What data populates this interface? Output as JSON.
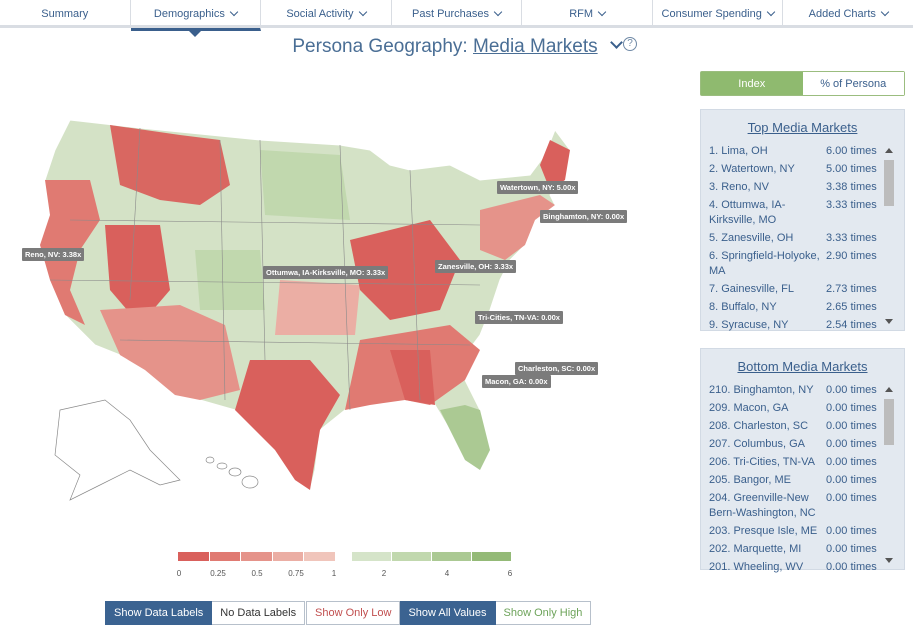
{
  "nav": {
    "tabs": [
      {
        "label": "Summary",
        "dropdown": false,
        "active": false
      },
      {
        "label": "Demographics",
        "dropdown": true,
        "active": true
      },
      {
        "label": "Social Activity",
        "dropdown": true,
        "active": false
      },
      {
        "label": "Past Purchases",
        "dropdown": true,
        "active": false
      },
      {
        "label": "RFM",
        "dropdown": true,
        "active": false
      },
      {
        "label": "Consumer Spending",
        "dropdown": true,
        "active": false
      },
      {
        "label": "Added Charts",
        "dropdown": true,
        "active": false
      }
    ]
  },
  "header": {
    "title_prefix": "Persona Geography: ",
    "title_link": "Media Markets",
    "help": "?"
  },
  "map": {
    "labels": [
      {
        "text": "Watertown, NY: 5.00x"
      },
      {
        "text": "Binghamton, NY: 0.00x"
      },
      {
        "text": "Reno, NV: 3.38x"
      },
      {
        "text": "Ottumwa, IA-Kirksville, MO: 3.33x"
      },
      {
        "text": "Zanesville, OH: 3.33x"
      },
      {
        "text": "Tri-Cities, TN-VA: 0.00x"
      },
      {
        "text": "Charleston, SC: 0.00x"
      },
      {
        "text": "Macon, GA: 0.00x"
      }
    ]
  },
  "legend": {
    "ticks": [
      "0",
      "0.25",
      "0.5",
      "0.75",
      "1",
      "2",
      "4",
      "6"
    ],
    "low_colors": [
      "#d9605c",
      "#e07a72",
      "#e5938a",
      "#ebaea4",
      "#f0c5bb"
    ],
    "high_colors": [
      "#d5e4c9",
      "#c1d8ae",
      "#abc993",
      "#94ba77"
    ]
  },
  "controls": {
    "labels_group": [
      "Show Data Labels",
      "No Data Labels"
    ],
    "filter_group": [
      "Show Only Low",
      "Show All Values",
      "Show Only High"
    ]
  },
  "toggle": {
    "index": "Index",
    "percent": "% of Persona"
  },
  "top_panel": {
    "title": "Top Media Markets",
    "rows": [
      {
        "name": "1. Lima, OH",
        "value": "6.00 times"
      },
      {
        "name": "2. Watertown, NY",
        "value": "5.00 times"
      },
      {
        "name": "3. Reno, NV",
        "value": "3.38 times"
      },
      {
        "name": "4. Ottumwa, IA-Kirksville, MO",
        "value": "3.33 times"
      },
      {
        "name": "5. Zanesville, OH",
        "value": "3.33 times"
      },
      {
        "name": "6. Springfield-Holyoke, MA",
        "value": "2.90 times"
      },
      {
        "name": "7. Gainesville, FL",
        "value": "2.73 times"
      },
      {
        "name": "8. Buffalo, NY",
        "value": "2.65 times"
      },
      {
        "name": "9. Syracuse, NY",
        "value": "2.54 times"
      }
    ]
  },
  "bottom_panel": {
    "title": "Bottom Media Markets",
    "rows": [
      {
        "name": "210. Binghamton, NY",
        "value": "0.00 times"
      },
      {
        "name": "209. Macon, GA",
        "value": "0.00 times"
      },
      {
        "name": "208. Charleston, SC",
        "value": "0.00 times"
      },
      {
        "name": "207. Columbus, GA",
        "value": "0.00 times"
      },
      {
        "name": "206. Tri-Cities, TN-VA",
        "value": "0.00 times"
      },
      {
        "name": "205. Bangor, ME",
        "value": "0.00 times"
      },
      {
        "name": "204. Greenville-New Bern-Washington, NC",
        "value": "0.00 times"
      },
      {
        "name": "203. Presque Isle, ME",
        "value": "0.00 times"
      },
      {
        "name": "202. Marquette, MI",
        "value": "0.00 times"
      },
      {
        "name": "201. Wheeling, WV",
        "value": "0.00 times"
      }
    ]
  }
}
